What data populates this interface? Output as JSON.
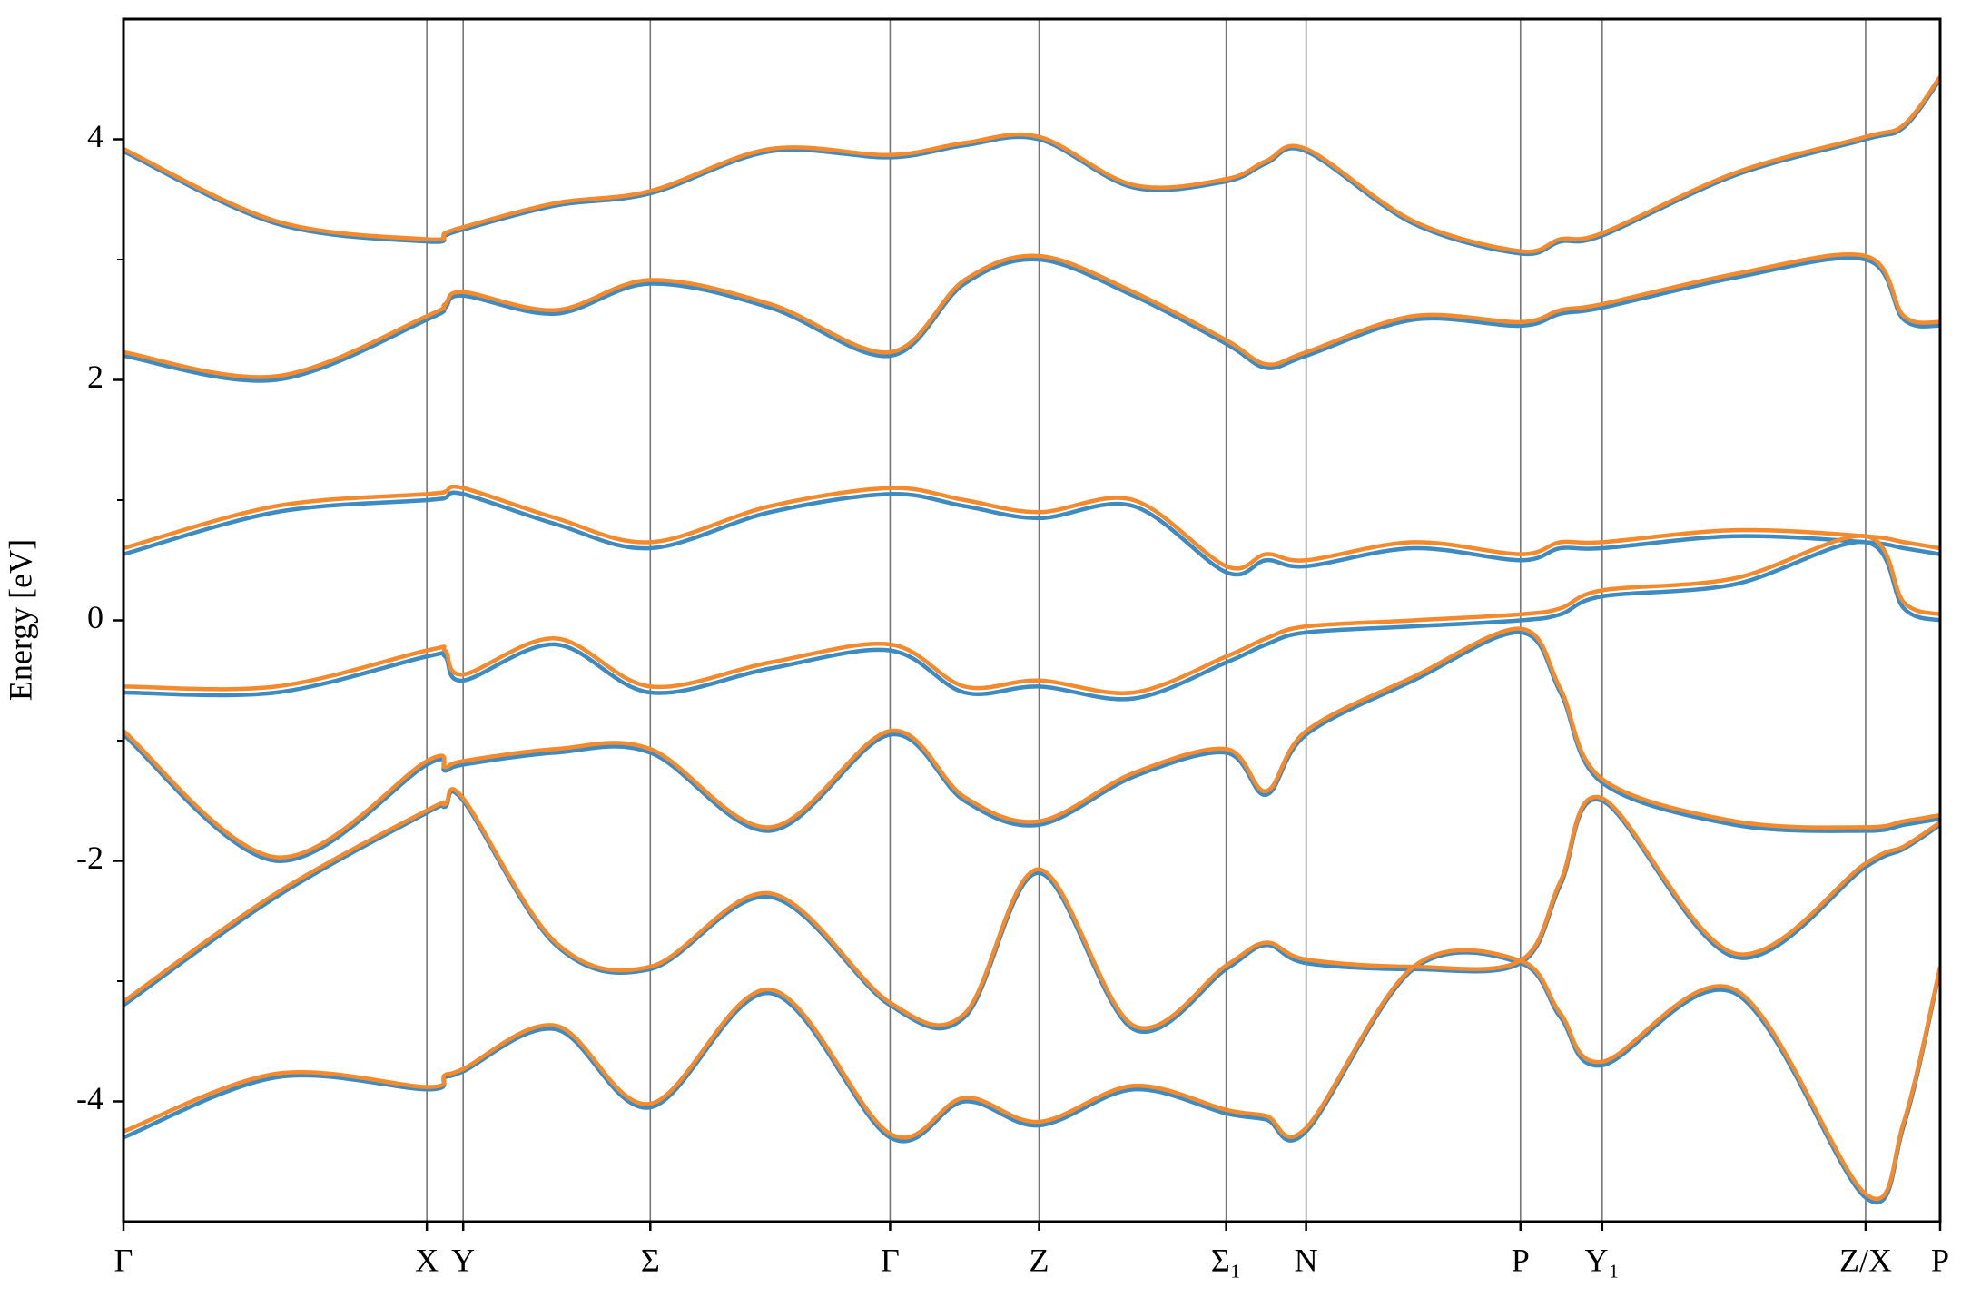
{
  "chart_data": {
    "type": "line",
    "ylabel": "Energy [eV]",
    "x": [
      0,
      0.084,
      0.167,
      0.177,
      0.187,
      0.238,
      0.29,
      0.356,
      0.422,
      0.463,
      0.504,
      0.556,
      0.607,
      0.629,
      0.651,
      0.71,
      0.769,
      0.791,
      0.814,
      0.887,
      0.959,
      0.98,
      1.0
    ],
    "xlim": [
      0,
      1.0
    ],
    "ylim": [
      -5,
      5
    ],
    "yticks": [
      -4,
      -2,
      0,
      2,
      4
    ],
    "yminorticks": [
      -3,
      -1,
      1,
      3
    ],
    "xticks": [
      {
        "value": 0,
        "label": "Γ"
      },
      {
        "value": 0.167,
        "label": "X"
      },
      {
        "value": 0.187,
        "label": "Y"
      },
      {
        "value": 0.29,
        "label": "Σ"
      },
      {
        "value": 0.422,
        "label": "Γ"
      },
      {
        "value": 0.504,
        "label": "Z"
      },
      {
        "value": 0.607,
        "label": "Σ₁"
      },
      {
        "value": 0.651,
        "label": "N"
      },
      {
        "value": 0.769,
        "label": "P"
      },
      {
        "value": 0.814,
        "label": "Y₁"
      },
      {
        "value": 0.959,
        "label": "Z/X"
      },
      {
        "value": 1.0,
        "label": "P"
      }
    ],
    "grid": true,
    "series": [
      {
        "color": "#3d8bc0",
        "values": [
          -4.3,
          -3.8,
          -3.9,
          -3.8,
          -3.75,
          -3.4,
          -4.05,
          -3.1,
          -4.3,
          -4.0,
          -4.2,
          -3.9,
          -4.1,
          -4.15,
          -4.25,
          -2.9,
          -2.85,
          -3.3,
          -3.7,
          -3.1,
          -4.8,
          -4.2,
          -2.9
        ]
      },
      {
        "color": "#3d8bc0",
        "values": [
          -3.2,
          -2.3,
          -1.6,
          -1.55,
          -1.5,
          -2.7,
          -2.9,
          -2.3,
          -3.2,
          -3.3,
          -2.1,
          -3.4,
          -2.9,
          -2.7,
          -2.85,
          -2.9,
          -2.85,
          -2.2,
          -1.5,
          -2.8,
          -2.05,
          -1.9,
          -1.7
        ]
      },
      {
        "color": "#3d8bc0",
        "values": [
          -0.95,
          -2.0,
          -1.2,
          -1.25,
          -1.2,
          -1.1,
          -1.1,
          -1.75,
          -0.95,
          -1.5,
          -1.7,
          -1.3,
          -1.1,
          -1.45,
          -0.95,
          -0.5,
          -0.1,
          -0.6,
          -1.35,
          -1.7,
          -1.75,
          -1.7,
          -1.65
        ]
      },
      {
        "color": "#3d8bc0",
        "values": [
          -0.6,
          -0.6,
          -0.3,
          -0.3,
          -0.5,
          -0.2,
          -0.6,
          -0.4,
          -0.25,
          -0.6,
          -0.55,
          -0.65,
          -0.35,
          -0.2,
          -0.1,
          -0.05,
          0.0,
          0.05,
          0.2,
          0.3,
          0.65,
          0.1,
          0.0
        ]
      },
      {
        "color": "#3d8bc0",
        "values": [
          0.55,
          0.9,
          1.0,
          1.02,
          1.05,
          0.8,
          0.6,
          0.9,
          1.05,
          0.95,
          0.85,
          0.95,
          0.4,
          0.5,
          0.45,
          0.6,
          0.5,
          0.6,
          0.6,
          0.7,
          0.65,
          0.6,
          0.55
        ]
      },
      {
        "color": "#3d8bc0",
        "values": [
          2.2,
          2.0,
          2.5,
          2.6,
          2.7,
          2.55,
          2.8,
          2.6,
          2.2,
          2.8,
          3.0,
          2.7,
          2.3,
          2.1,
          2.2,
          2.5,
          2.45,
          2.55,
          2.6,
          2.85,
          3.0,
          2.5,
          2.45
        ]
      },
      {
        "color": "#3d8bc0",
        "values": [
          3.9,
          3.3,
          3.15,
          3.2,
          3.25,
          3.45,
          3.55,
          3.9,
          3.85,
          3.95,
          4.0,
          3.6,
          3.65,
          3.8,
          3.9,
          3.3,
          3.05,
          3.15,
          3.2,
          3.7,
          4.0,
          4.1,
          4.5
        ]
      },
      {
        "color": "#f58a2c",
        "values": [
          -4.25,
          -3.77,
          -3.88,
          -3.78,
          -3.73,
          -3.37,
          -4.02,
          -3.07,
          -4.27,
          -3.97,
          -4.17,
          -3.87,
          -4.07,
          -4.12,
          -4.22,
          -2.88,
          -2.83,
          -3.27,
          -3.67,
          -3.07,
          -4.77,
          -4.17,
          -2.88
        ]
      },
      {
        "color": "#f58a2c",
        "values": [
          -3.17,
          -2.27,
          -1.58,
          -1.53,
          -1.48,
          -2.68,
          -2.88,
          -2.27,
          -3.18,
          -3.27,
          -2.07,
          -3.37,
          -2.87,
          -2.68,
          -2.82,
          -2.88,
          -2.83,
          -2.17,
          -1.48,
          -2.77,
          -2.02,
          -1.88,
          -1.68
        ]
      },
      {
        "color": "#f58a2c",
        "values": [
          -0.92,
          -1.97,
          -1.17,
          -1.22,
          -1.17,
          -1.07,
          -1.07,
          -1.72,
          -0.92,
          -1.47,
          -1.67,
          -1.27,
          -1.07,
          -1.42,
          -0.92,
          -0.47,
          -0.07,
          -0.57,
          -1.32,
          -1.67,
          -1.72,
          -1.67,
          -1.62
        ]
      },
      {
        "color": "#f58a2c",
        "values": [
          -0.55,
          -0.55,
          -0.25,
          -0.25,
          -0.45,
          -0.15,
          -0.55,
          -0.35,
          -0.2,
          -0.55,
          -0.5,
          -0.6,
          -0.3,
          -0.15,
          -0.05,
          0.0,
          0.05,
          0.1,
          0.25,
          0.35,
          0.7,
          0.15,
          0.05
        ]
      },
      {
        "color": "#f58a2c",
        "values": [
          0.6,
          0.95,
          1.05,
          1.07,
          1.1,
          0.85,
          0.65,
          0.95,
          1.1,
          1.0,
          0.9,
          1.0,
          0.45,
          0.55,
          0.5,
          0.65,
          0.55,
          0.65,
          0.65,
          0.75,
          0.7,
          0.65,
          0.6
        ]
      },
      {
        "color": "#f58a2c",
        "values": [
          2.23,
          2.03,
          2.53,
          2.63,
          2.73,
          2.58,
          2.83,
          2.63,
          2.23,
          2.83,
          3.03,
          2.73,
          2.33,
          2.13,
          2.23,
          2.53,
          2.48,
          2.58,
          2.63,
          2.88,
          3.03,
          2.53,
          2.48
        ]
      },
      {
        "color": "#f58a2c",
        "values": [
          3.92,
          3.32,
          3.17,
          3.22,
          3.27,
          3.47,
          3.57,
          3.92,
          3.87,
          3.97,
          4.02,
          3.62,
          3.67,
          3.82,
          3.92,
          3.32,
          3.07,
          3.17,
          3.22,
          3.72,
          4.02,
          4.12,
          4.52
        ]
      }
    ]
  }
}
